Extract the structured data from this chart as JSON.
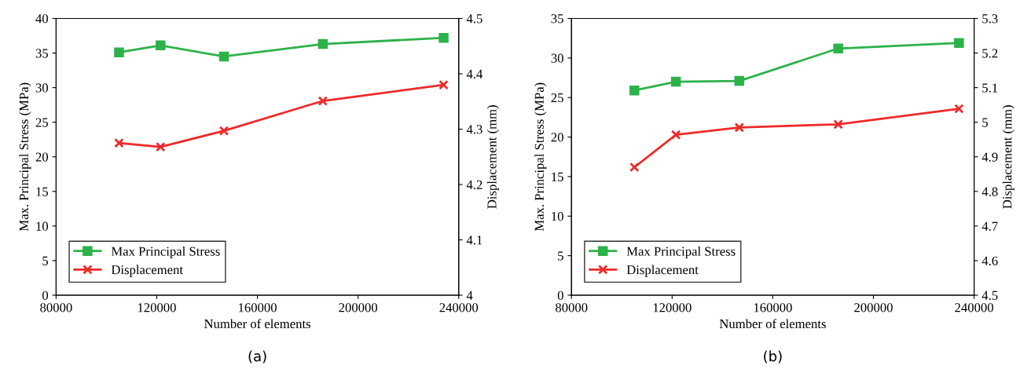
{
  "chart_data": [
    {
      "type": "line",
      "xlabel": "Number of elements",
      "ylabel": "Max. Principal Stress (MPa)",
      "y2label": "Displacement (mm)",
      "annotations": [
        "(a)"
      ],
      "x": [
        105000,
        121500,
        146700,
        186000,
        234000
      ],
      "series": [
        {
          "name": "Max Principal Stress",
          "color": "#2db24a",
          "marker": "square",
          "values": [
            35.1,
            36.1,
            34.5,
            36.3,
            37.2
          ]
        },
        {
          "name": "Displacement",
          "color": "#ee2a2a",
          "marker": "cross",
          "axis": "y2",
          "values": [
            4.275,
            4.268,
            4.297,
            4.351,
            4.38
          ]
        }
      ],
      "xlim": [
        80000,
        240000
      ],
      "xticks": [
        80000,
        120000,
        160000,
        200000,
        240000
      ],
      "ylim": [
        0,
        40
      ],
      "yticks": [
        0,
        5,
        10,
        15,
        20,
        25,
        30,
        35,
        40
      ],
      "y2lim": [
        4,
        4.5
      ],
      "y2ticks": [
        4,
        4.1,
        4.2,
        4.3,
        4.4,
        4.5
      ],
      "grid": false,
      "legend": "bottom left",
      "line_style": "solid"
    },
    {
      "type": "line",
      "xlabel": "Number of elements",
      "ylabel": "Max. Principal Stress (MPa)",
      "y2label": "Displacement (mm)",
      "annotations": [
        "(b)"
      ],
      "x": [
        105000,
        121500,
        146700,
        186000,
        234000
      ],
      "series": [
        {
          "name": "Max Principal Stress",
          "color": "#2db24a",
          "marker": "square",
          "values": [
            25.9,
            27.0,
            27.1,
            31.2,
            31.9
          ]
        },
        {
          "name": "Displacement",
          "color": "#ee2a2a",
          "marker": "cross",
          "axis": "y2",
          "values": [
            4.87,
            4.964,
            4.985,
            4.994,
            5.039
          ]
        }
      ],
      "xlim": [
        80000,
        240000
      ],
      "xticks": [
        80000,
        120000,
        160000,
        200000,
        240000
      ],
      "ylim": [
        0,
        35
      ],
      "yticks": [
        0,
        5,
        10,
        15,
        20,
        25,
        30,
        35
      ],
      "y2lim": [
        4.5,
        5.3
      ],
      "y2ticks": [
        4.5,
        4.6,
        4.7,
        4.8,
        4.9,
        5,
        5.1,
        5.2,
        5.3
      ],
      "grid": false,
      "legend": "bottom left",
      "line_style": "solid"
    }
  ]
}
